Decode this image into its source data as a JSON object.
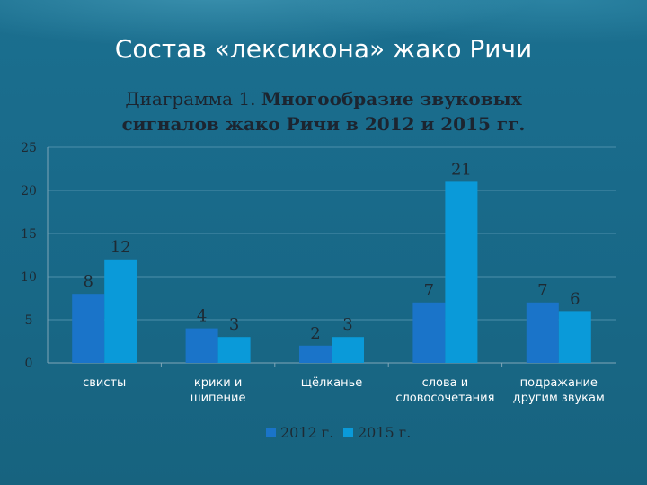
{
  "slide": {
    "title": "Состав «лексикона» жако Ричи"
  },
  "chart_data": {
    "type": "bar",
    "title_prefix": "Диаграмма 1. ",
    "title_line1_bold": "Многообразие звуковых",
    "title_line2_bold": "сигналов жако Ричи в 2012 и 2015 гг.",
    "categories": [
      [
        "свисты"
      ],
      [
        "крики и",
        "шипение"
      ],
      [
        "щёлканье"
      ],
      [
        "слова и",
        "словосочетания"
      ],
      [
        "подражание",
        "другим звукам"
      ]
    ],
    "series": [
      {
        "name": "2012 г.",
        "color": "#1a74c9",
        "values": [
          8,
          4,
          2,
          7,
          7
        ]
      },
      {
        "name": "2015 г.",
        "color": "#0a9ad9",
        "values": [
          12,
          3,
          3,
          21,
          6
        ]
      }
    ],
    "y_ticks": [
      "0",
      "5",
      "10",
      "15",
      "20",
      "25"
    ],
    "ylim": [
      0,
      25
    ],
    "grid": true,
    "legend_position": "bottom"
  }
}
